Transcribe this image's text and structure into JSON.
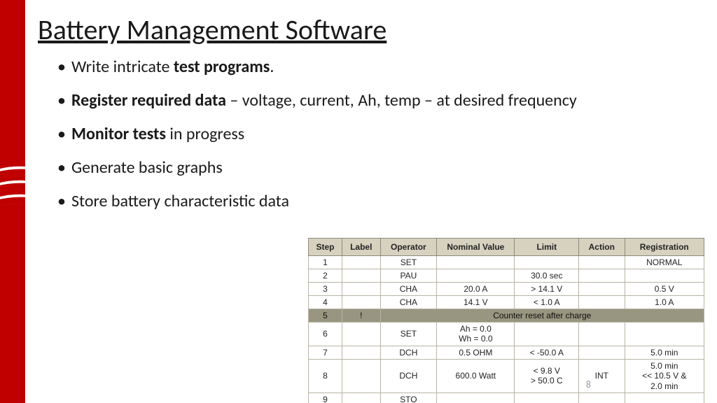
{
  "title": "Battery Management Software",
  "bullets": [
    {
      "pre": "Write intricate ",
      "bold": "test programs",
      "post": "."
    },
    {
      "bold": "Register required data",
      "post": " – voltage, current, Ah, temp – at desired frequency"
    },
    {
      "bold": "Monitor tests",
      "post": " in progress"
    },
    {
      "plain": "Generate basic graphs"
    },
    {
      "plain": "Store battery characteristic data"
    }
  ],
  "table": {
    "columns": [
      "Step",
      "Label",
      "Operator",
      "Nominal Value",
      "Limit",
      "Action",
      "Registration"
    ],
    "col_widths": [
      "44px",
      "50px",
      "74px",
      "102px",
      "84px",
      "60px",
      "104px"
    ],
    "header_bg": "#d7d2c0",
    "border_color": "#8a8a7a",
    "cell_bg": "#ffffff",
    "special_bg": "#989680",
    "rows": [
      {
        "cells": [
          "1",
          "",
          "SET",
          "",
          "",
          "",
          "NORMAL"
        ]
      },
      {
        "cells": [
          "2",
          "",
          "PAU",
          "",
          "30.0 sec",
          "",
          ""
        ]
      },
      {
        "cells": [
          "3",
          "",
          "CHA",
          "20.0 A",
          "> 14.1 V",
          "",
          "0.5 V"
        ]
      },
      {
        "cells": [
          "4",
          "",
          "CHA",
          "14.1 V",
          "< 1.0 A",
          "",
          "1.0 A"
        ]
      },
      {
        "cells": [
          "5",
          "!"
        ],
        "special": true,
        "merged_text": "Counter reset after charge"
      },
      {
        "cells": [
          "6",
          "",
          "SET",
          "Ah =  0.0\nWh =  0.0",
          "",
          "",
          ""
        ]
      },
      {
        "cells": [
          "7",
          "",
          "DCH",
          "0.5 OHM",
          "< -50.0 A",
          "",
          "5.0 min"
        ]
      },
      {
        "cells": [
          "8",
          "",
          "DCH",
          "600.0 Watt",
          "< 9.8 V\n> 50.0 C",
          "INT",
          "5.0 min\n<< 10.5 V &\n2.0 min"
        ]
      },
      {
        "cells": [
          "9",
          "",
          "STO",
          "",
          "",
          "",
          ""
        ]
      }
    ]
  },
  "page_number": "8"
}
